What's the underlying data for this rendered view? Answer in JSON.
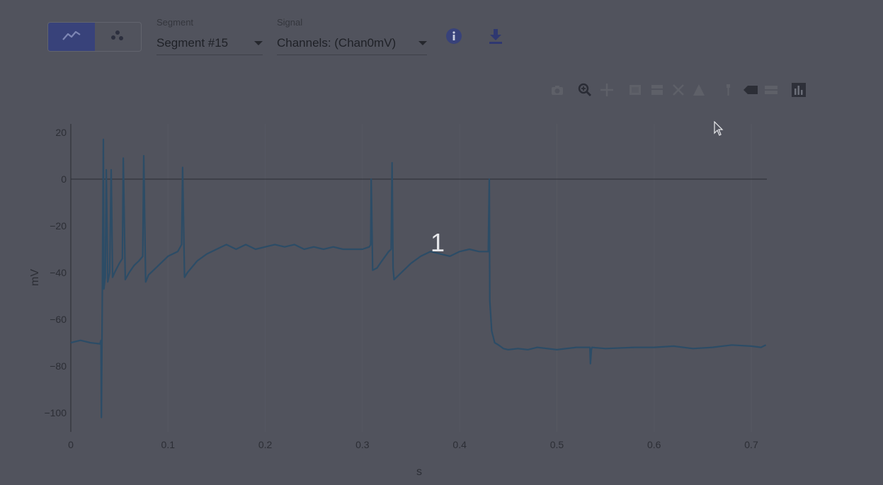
{
  "toolbar": {
    "view_modes": [
      {
        "name": "line-chart-icon",
        "active": true
      },
      {
        "name": "scatter-plot-icon",
        "active": false
      }
    ],
    "segment": {
      "label": "Segment",
      "value": "Segment #15"
    },
    "signal": {
      "label": "Signal",
      "value": "Channels: (Chan0mV)"
    },
    "info_icon": "info-icon",
    "download_icon": "download-icon"
  },
  "modebar": {
    "icons": [
      "camera-icon",
      "zoom-icon",
      "pan-icon",
      "box-select-icon",
      "lasso-select-icon",
      "zoom-in-icon",
      "zoom-out-icon",
      "autoscale-icon",
      "reset-axes-icon",
      "spike-lines-icon",
      "hover-closest-icon",
      "hover-compare-icon",
      "plotly-logo-icon"
    ]
  },
  "overlay": {
    "number": "1"
  },
  "colors": {
    "trace": "#2c4c66",
    "background": "#51535d",
    "active_toggle": "#38427a"
  },
  "chart_data": {
    "type": "line",
    "xlabel": "s",
    "ylabel": "mV",
    "xlim": [
      0,
      0.72
    ],
    "ylim": [
      -103,
      22
    ],
    "x_ticks": [
      "0",
      "0.1",
      "0.2",
      "0.3",
      "0.4",
      "0.5",
      "0.6",
      "0.7"
    ],
    "y_ticks": [
      "20",
      "0",
      "−20",
      "−40",
      "−60",
      "−80",
      "−100"
    ],
    "x_tick_values": [
      0,
      0.1,
      0.2,
      0.3,
      0.4,
      0.5,
      0.6,
      0.7
    ],
    "y_tick_values": [
      20,
      0,
      -20,
      -40,
      -60,
      -80,
      -100
    ],
    "zero_line": true,
    "series": [
      {
        "x": [
          0,
          0.01,
          0.02,
          0.03,
          0.031,
          0.0315,
          0.0325,
          0.0335,
          0.034,
          0.0355,
          0.0365,
          0.038,
          0.04,
          0.0415,
          0.043,
          0.045,
          0.05,
          0.053,
          0.054,
          0.056,
          0.06,
          0.065,
          0.07,
          0.074,
          0.075,
          0.077,
          0.08,
          0.09,
          0.1,
          0.11,
          0.114,
          0.115,
          0.117,
          0.12,
          0.13,
          0.14,
          0.15,
          0.16,
          0.17,
          0.18,
          0.19,
          0.2,
          0.21,
          0.22,
          0.23,
          0.24,
          0.25,
          0.26,
          0.27,
          0.28,
          0.29,
          0.3,
          0.307,
          0.3085,
          0.309,
          0.3105,
          0.315,
          0.32,
          0.327,
          0.3295,
          0.3305,
          0.3315,
          0.3325,
          0.34,
          0.35,
          0.36,
          0.37,
          0.38,
          0.39,
          0.4,
          0.41,
          0.42,
          0.429,
          0.4295,
          0.4305,
          0.431,
          0.433,
          0.436,
          0.44,
          0.445,
          0.45,
          0.46,
          0.47,
          0.48,
          0.5,
          0.52,
          0.534,
          0.5345,
          0.5355,
          0.536,
          0.55,
          0.58,
          0.6,
          0.62,
          0.64,
          0.66,
          0.68,
          0.7,
          0.71,
          0.715
        ],
        "y": [
          -70,
          -69,
          -70,
          -70.5,
          -69,
          -102,
          -45,
          17,
          -47,
          -42,
          4,
          -44,
          -40,
          4,
          -42,
          -40,
          -36,
          -34,
          9,
          -43,
          -40,
          -37,
          -35,
          -33,
          10,
          -44,
          -41,
          -37,
          -33,
          -31,
          -28,
          5,
          -42,
          -40,
          -35,
          -32,
          -30,
          -28,
          -30,
          -28,
          -30,
          -29,
          -28,
          -29,
          -28,
          -30,
          -29,
          -30,
          -29,
          -30,
          -30,
          -30,
          -29,
          -28,
          0,
          -39,
          -38,
          -35,
          -31,
          -30,
          7,
          -38,
          -43,
          -40,
          -36,
          -33,
          -31,
          -32,
          -33,
          -31,
          -30,
          -31,
          -31,
          -31,
          0,
          -52,
          -65,
          -70,
          -71,
          -72.5,
          -73,
          -72.5,
          -73,
          -72,
          -73,
          -72,
          -72,
          -79,
          -73,
          -72,
          -72.5,
          -72,
          -72,
          -71.5,
          -72.5,
          -72,
          -71,
          -71.5,
          -72,
          -71
        ]
      }
    ]
  }
}
